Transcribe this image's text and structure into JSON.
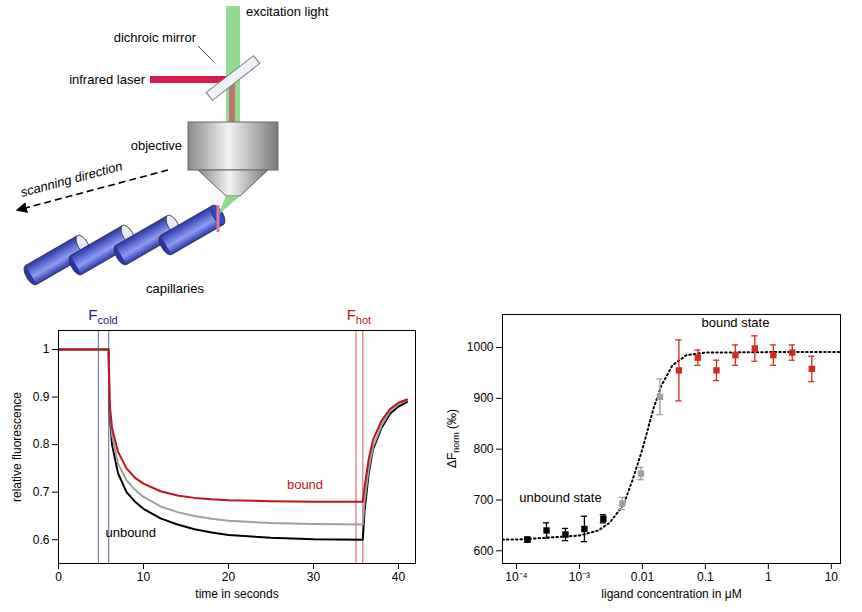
{
  "diagram": {
    "labels": {
      "excitation": "excitation light",
      "mirror": "dichroic mirror",
      "laser": "infrared laser",
      "objective": "objective",
      "scanning": "scanning direction",
      "capillaries": "capillaries"
    }
  },
  "chart_data": [
    {
      "type": "line",
      "xlabel": "time in seconds",
      "ylabel": "relative fluorescence",
      "xlim": [
        0,
        42
      ],
      "ylim": [
        0.55,
        1.04
      ],
      "xticks": [
        0,
        10,
        20,
        30,
        40
      ],
      "yticks": [
        0.6,
        0.7,
        0.8,
        0.9,
        1
      ],
      "x": [
        0,
        2,
        4,
        5.9,
        6,
        6.3,
        7,
        8,
        9,
        10,
        12,
        14,
        16,
        18,
        20,
        25,
        30,
        35.8,
        36,
        36.5,
        37,
        38,
        39,
        40,
        41
      ],
      "series": [
        {
          "name": "unbound",
          "color": "#000000",
          "label_at": [
            8.5,
            0.615
          ],
          "values": [
            1,
            1,
            1,
            1,
            0.87,
            0.8,
            0.74,
            0.7,
            0.68,
            0.665,
            0.645,
            0.632,
            0.622,
            0.615,
            0.61,
            0.604,
            0.601,
            0.6,
            0.66,
            0.74,
            0.79,
            0.835,
            0.865,
            0.88,
            0.89
          ]
        },
        {
          "color": "#a0a0a0",
          "values": [
            1,
            1,
            1,
            1,
            0.88,
            0.82,
            0.76,
            0.725,
            0.705,
            0.69,
            0.67,
            0.658,
            0.65,
            0.644,
            0.64,
            0.635,
            0.633,
            0.632,
            0.68,
            0.75,
            0.795,
            0.84,
            0.87,
            0.885,
            0.893
          ]
        },
        {
          "name": "bound",
          "color": "#c0141c",
          "label_at": [
            29,
            0.715
          ],
          "values": [
            1,
            1,
            1,
            1,
            0.89,
            0.835,
            0.785,
            0.75,
            0.73,
            0.718,
            0.702,
            0.693,
            0.688,
            0.685,
            0.683,
            0.681,
            0.68,
            0.68,
            0.71,
            0.77,
            0.81,
            0.85,
            0.875,
            0.888,
            0.895
          ]
        }
      ],
      "annotations": [
        {
          "text": "F",
          "subscript": "cold",
          "x": [
            4.7,
            5.9
          ],
          "color": "#1a237e"
        },
        {
          "text": "F",
          "subscript": "hot",
          "x": [
            35,
            35.8
          ],
          "color": "#c0141c"
        }
      ]
    },
    {
      "type": "scatter",
      "xlabel": "ligand concentration in μM",
      "ylabel": {
        "text": "ΔF",
        "subscript": "norm",
        "after": "(‰)"
      },
      "log": "x",
      "xlim": [
        6e-05,
        14
      ],
      "ylim": [
        575,
        1065
      ],
      "xticks": [
        {
          "value": 0.0001,
          "label": "10⁻⁴"
        },
        {
          "value": 0.001,
          "label": "10⁻³"
        },
        0.01,
        0.1,
        1,
        10
      ],
      "yticks": [
        600,
        700,
        800,
        900,
        1000
      ],
      "marker": "square",
      "x": [
        0.00015,
        0.0003,
        0.0006,
        0.0012,
        0.0024,
        0.0048,
        0.0095,
        0.019,
        0.038,
        0.076,
        0.15,
        0.3,
        0.61,
        1.2,
        2.4,
        4.9
      ],
      "values": [
        622,
        640,
        632,
        643,
        663,
        693,
        752,
        903,
        955,
        980,
        955,
        985,
        998,
        985,
        990,
        958
      ],
      "errors": [
        5,
        15,
        12,
        25,
        8,
        12,
        12,
        35,
        60,
        15,
        20,
        20,
        25,
        20,
        15,
        25
      ],
      "colors": [
        "#000000",
        "#000000",
        "#000000",
        "#000000",
        "#000000",
        "#a0a0a0",
        "#a0a0a0",
        "#a0a0a0",
        "#d42a20",
        "#d42a20",
        "#d42a20",
        "#d42a20",
        "#d42a20",
        "#d42a20",
        "#d42a20",
        "#d42a20"
      ],
      "fit": {
        "color": "#000000",
        "line_style": "dotted",
        "x": [
          6e-05,
          0.0001,
          0.001,
          0.002,
          0.003,
          0.005,
          0.007,
          0.01,
          0.015,
          0.02,
          0.03,
          0.05,
          0.1,
          1,
          10,
          14
        ],
        "values": [
          622,
          622,
          630,
          640,
          655,
          690,
          740,
          800,
          880,
          925,
          965,
          985,
          990,
          991,
          991,
          991
        ]
      },
      "annotations": [
        {
          "text": "unbound state",
          "at": [
            0.0005,
            705
          ]
        },
        {
          "text": "bound state",
          "at": [
            0.3,
            1048
          ]
        }
      ]
    }
  ]
}
